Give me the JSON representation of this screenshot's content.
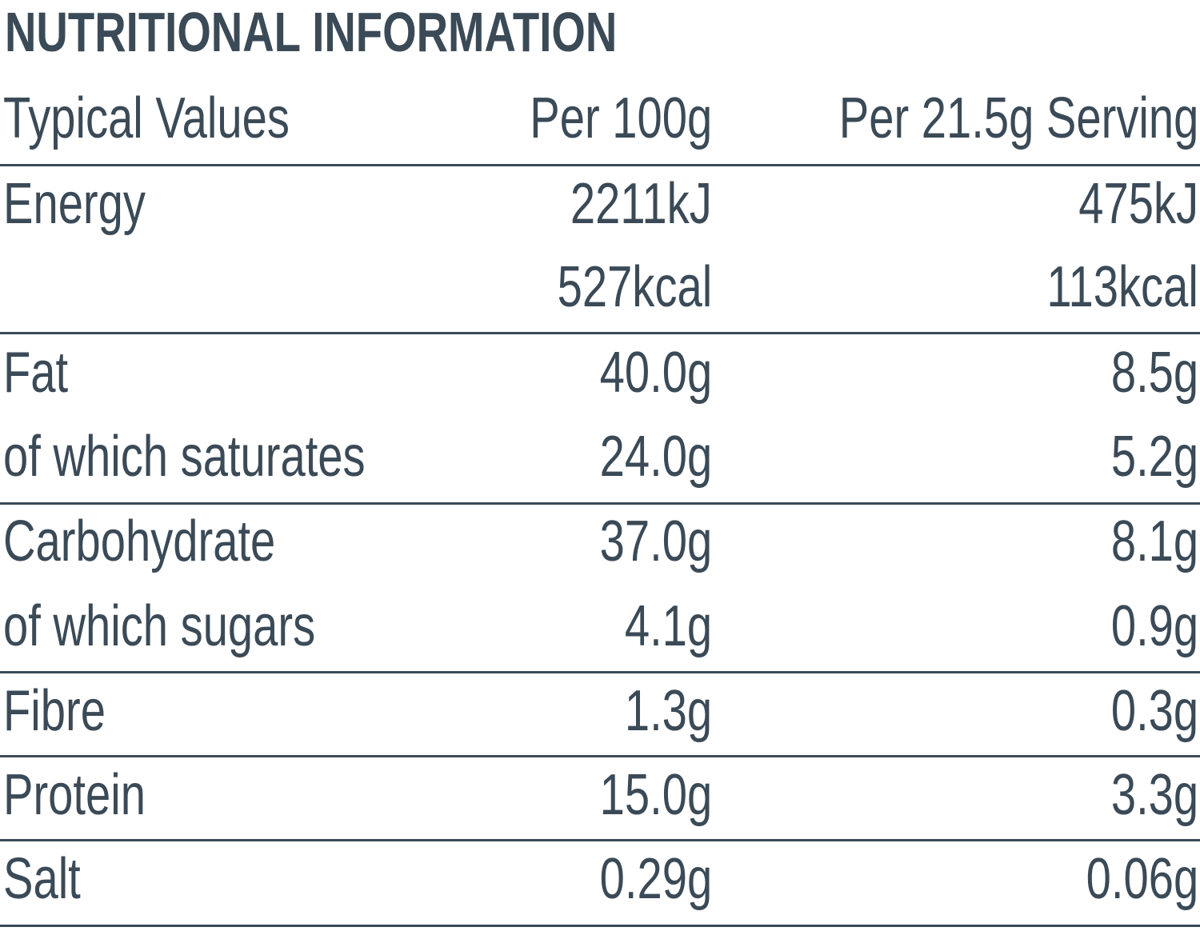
{
  "title": "NUTRITIONAL INFORMATION",
  "header": {
    "label": "Typical Values",
    "per100": "Per 100g",
    "perServing": "Per 21.5g Serving"
  },
  "rows": [
    {
      "label": "Energy",
      "per100": "2211kJ",
      "perServing": "475kJ"
    },
    {
      "label": "",
      "per100": "527kcal",
      "perServing": "113kcal"
    },
    {
      "label": "Fat",
      "per100": "40.0g",
      "perServing": "8.5g"
    },
    {
      "label": "of which saturates",
      "per100": "24.0g",
      "perServing": "5.2g"
    },
    {
      "label": "Carbohydrate",
      "per100": "37.0g",
      "perServing": "8.1g"
    },
    {
      "label": "of which sugars",
      "per100": "4.1g",
      "perServing": "0.9g"
    },
    {
      "label": "Fibre",
      "per100": "1.3g",
      "perServing": "0.3g"
    },
    {
      "label": "Protein",
      "per100": "15.0g",
      "perServing": "3.3g"
    },
    {
      "label": "Salt",
      "per100": "0.29g",
      "perServing": "0.06g"
    }
  ]
}
